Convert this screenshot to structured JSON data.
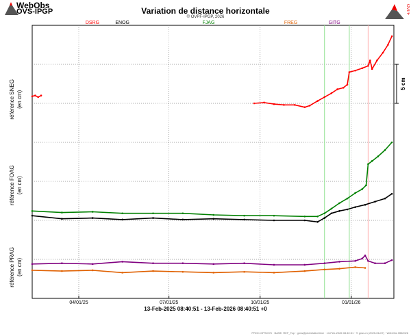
{
  "header": {
    "logo_title": "WebObs",
    "logo_sub": "OVS-IPGP",
    "title": "Variation de distance horizontale",
    "copyright": "© OVPF-IPGP, 2026",
    "right_logo_text": "OVPF"
  },
  "footer": {
    "time_range": "13-Feb-2025 08:40:51 - 13-Feb-2026 08:40:51 +0",
    "note": "PROC.GPSOVS · BASE: REF_Top · gnss@plotrelativetime · 13-Feb-2026 08:40:51 · © gnss.m (2025-06-07) · WebObs MB2026"
  },
  "chart_data": {
    "type": "line",
    "title": "Variation de distance horizontale",
    "xlabel": "",
    "x_range": [
      "2025-02-13",
      "2026-02-13"
    ],
    "x_ticks": [
      {
        "date": "2025-04-01",
        "label": "04/01/25"
      },
      {
        "date": "2025-07-01",
        "label": "07/01/25"
      },
      {
        "date": "2025-10-01",
        "label": "10/01/25"
      },
      {
        "date": "2026-01-01",
        "label": "01/01/26"
      }
    ],
    "ylim": [
      0,
      35
    ],
    "y_unit": "cm",
    "y_panel_labels": [
      {
        "label": "référence SNEG",
        "unit": "(en cm)",
        "center": 25.5
      },
      {
        "label": "référence FOAG",
        "unit": "(en cm)",
        "center": 14.5
      },
      {
        "label": "référence PRAG",
        "unit": "(en cm)",
        "center": 4
      }
    ],
    "scale_bar": {
      "label": "5 cm",
      "value": 5
    },
    "grid": true,
    "event_markers": [
      {
        "label": "DSRG",
        "date": "2025-02-13",
        "color": "#ff0000"
      },
      {
        "label": "ENOG",
        "date": "2025-05-15",
        "color": "#000000"
      },
      {
        "label": "FJAG",
        "date": "2025-08-10",
        "color": "#008000"
      },
      {
        "label": "FREG",
        "date": "2025-11-01",
        "color": "#e06000"
      },
      {
        "label": "GITG",
        "date": "2025-12-15",
        "color": "#800080"
      }
    ],
    "event_lines": [
      {
        "date": "2025-12-05",
        "color": "#90e090"
      },
      {
        "date": "2025-12-30",
        "color": "#90e090"
      },
      {
        "date": "2026-01-18",
        "color": "#ffaaaa"
      }
    ],
    "series": [
      {
        "color": "#ff0000",
        "points": [
          [
            "2025-02-13",
            25.9
          ],
          [
            "2025-02-16",
            26.0
          ],
          [
            "2025-02-19",
            25.8
          ],
          [
            "2025-02-22",
            26.0
          ],
          [
            "2025-09-25",
            25.0
          ],
          [
            "2025-10-05",
            25.1
          ],
          [
            "2025-10-15",
            24.9
          ],
          [
            "2025-10-25",
            24.8
          ],
          [
            "2025-11-05",
            24.8
          ],
          [
            "2025-11-15",
            24.5
          ],
          [
            "2025-11-20",
            24.7
          ],
          [
            "2025-11-28",
            25.3
          ],
          [
            "2025-12-05",
            25.8
          ],
          [
            "2025-12-12",
            26.3
          ],
          [
            "2025-12-18",
            26.8
          ],
          [
            "2025-12-24",
            27.0
          ],
          [
            "2025-12-28",
            27.4
          ],
          [
            "2025-12-30",
            29.0
          ],
          [
            "2026-01-05",
            29.2
          ],
          [
            "2026-01-12",
            29.5
          ],
          [
            "2026-01-18",
            29.8
          ],
          [
            "2026-01-20",
            30.5
          ],
          [
            "2026-01-22",
            29.4
          ],
          [
            "2026-01-27",
            30.5
          ],
          [
            "2026-02-02",
            31.5
          ],
          [
            "2026-02-07",
            32.5
          ],
          [
            "2026-02-11",
            33.6
          ]
        ]
      },
      {
        "color": "#008000",
        "points": [
          [
            "2025-02-13",
            11.2
          ],
          [
            "2025-03-15",
            11.0
          ],
          [
            "2025-04-15",
            11.1
          ],
          [
            "2025-05-15",
            10.9
          ],
          [
            "2025-06-15",
            10.9
          ],
          [
            "2025-07-15",
            10.9
          ],
          [
            "2025-08-15",
            10.7
          ],
          [
            "2025-09-15",
            10.6
          ],
          [
            "2025-10-15",
            10.6
          ],
          [
            "2025-11-15",
            10.5
          ],
          [
            "2025-11-28",
            10.5
          ],
          [
            "2025-12-05",
            10.9
          ],
          [
            "2025-12-12",
            11.5
          ],
          [
            "2025-12-20",
            12.2
          ],
          [
            "2025-12-28",
            12.8
          ],
          [
            "2026-01-05",
            13.5
          ],
          [
            "2026-01-12",
            14.0
          ],
          [
            "2026-01-16",
            14.5
          ],
          [
            "2026-01-18",
            17.2
          ],
          [
            "2026-01-22",
            17.6
          ],
          [
            "2026-01-28",
            18.2
          ],
          [
            "2026-02-04",
            19.0
          ],
          [
            "2026-02-11",
            20.0
          ]
        ]
      },
      {
        "color": "#000000",
        "points": [
          [
            "2025-02-13",
            10.6
          ],
          [
            "2025-03-15",
            10.2
          ],
          [
            "2025-04-15",
            10.3
          ],
          [
            "2025-05-15",
            10.1
          ],
          [
            "2025-06-15",
            10.3
          ],
          [
            "2025-07-15",
            10.1
          ],
          [
            "2025-08-15",
            10.2
          ],
          [
            "2025-09-15",
            10.1
          ],
          [
            "2025-10-15",
            10.0
          ],
          [
            "2025-11-15",
            10.0
          ],
          [
            "2025-11-28",
            9.8
          ],
          [
            "2025-12-05",
            10.3
          ],
          [
            "2025-12-12",
            10.9
          ],
          [
            "2025-12-20",
            11.2
          ],
          [
            "2025-12-28",
            11.4
          ],
          [
            "2026-01-05",
            11.7
          ],
          [
            "2026-01-15",
            12.0
          ],
          [
            "2026-01-25",
            12.4
          ],
          [
            "2026-02-04",
            12.8
          ],
          [
            "2026-02-11",
            13.4
          ]
        ]
      },
      {
        "color": "#800080",
        "points": [
          [
            "2025-02-13",
            4.4
          ],
          [
            "2025-03-15",
            4.5
          ],
          [
            "2025-04-15",
            4.4
          ],
          [
            "2025-05-15",
            4.7
          ],
          [
            "2025-06-15",
            4.5
          ],
          [
            "2025-07-15",
            4.5
          ],
          [
            "2025-08-15",
            4.4
          ],
          [
            "2025-09-15",
            4.5
          ],
          [
            "2025-10-15",
            4.3
          ],
          [
            "2025-11-15",
            4.3
          ],
          [
            "2025-12-05",
            4.5
          ],
          [
            "2025-12-20",
            4.7
          ],
          [
            "2026-01-05",
            4.8
          ],
          [
            "2026-01-12",
            5.1
          ],
          [
            "2026-01-15",
            5.5
          ],
          [
            "2026-01-18",
            4.8
          ],
          [
            "2026-01-25",
            4.5
          ],
          [
            "2026-02-04",
            4.5
          ],
          [
            "2026-02-11",
            4.9
          ]
        ]
      },
      {
        "color": "#e06000",
        "points": [
          [
            "2025-02-13",
            3.6
          ],
          [
            "2025-03-15",
            3.5
          ],
          [
            "2025-04-15",
            3.6
          ],
          [
            "2025-05-15",
            3.3
          ],
          [
            "2025-06-15",
            3.5
          ],
          [
            "2025-07-15",
            3.4
          ],
          [
            "2025-08-15",
            3.3
          ],
          [
            "2025-09-15",
            3.4
          ],
          [
            "2025-10-15",
            3.3
          ],
          [
            "2025-11-15",
            3.5
          ],
          [
            "2025-12-05",
            3.7
          ],
          [
            "2025-12-20",
            3.8
          ],
          [
            "2026-01-05",
            4.0
          ],
          [
            "2026-01-15",
            3.9
          ]
        ]
      }
    ]
  }
}
